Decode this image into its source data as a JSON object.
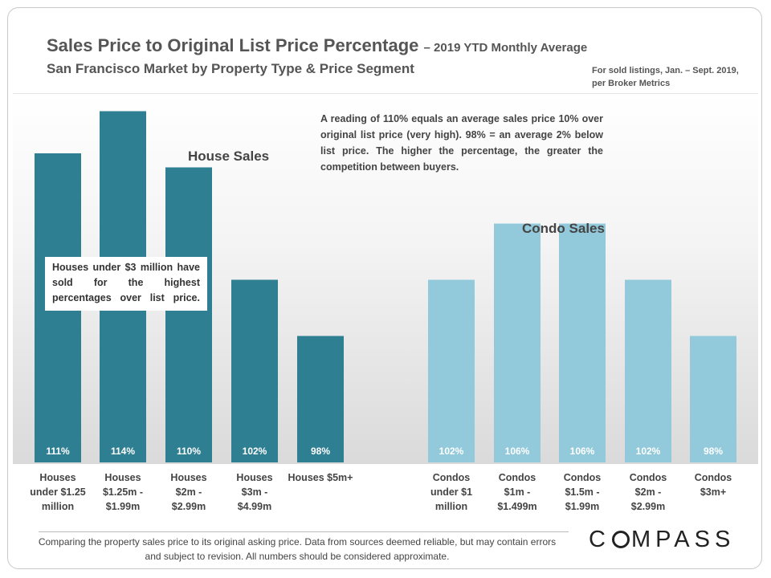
{
  "header": {
    "title": "Sales Price to Original List Price Percentage",
    "title_suffix": "– 2019 YTD Monthly Average",
    "subtitle": "San Francisco Market by Property Type & Price Segment",
    "source_note": "For sold listings, Jan. – Sept. 2019, per Broker Metrics"
  },
  "chart_data": {
    "type": "bar",
    "title": "Sales Price to Original List Price Percentage – 2019 YTD Monthly Average",
    "ylabel": "",
    "xlabel": "",
    "ylim": [
      89,
      115
    ],
    "series": [
      {
        "name": "House Sales",
        "color": "#2f7f93",
        "categories": [
          "Houses under $1.25 million",
          "Houses $1.25m - $1.99m",
          "Houses $2m - $2.99m",
          "Houses $3m - $4.99m",
          "Houses $5m+"
        ],
        "category_lines": [
          [
            "Houses",
            "under $1.25",
            "million"
          ],
          [
            "Houses",
            "$1.25m -",
            "$1.99m"
          ],
          [
            "Houses",
            "$2m -",
            "$2.99m"
          ],
          [
            "Houses",
            "$3m -",
            "$4.99m"
          ],
          [
            "Houses $5m+"
          ]
        ],
        "values": [
          111,
          114,
          110,
          102,
          98
        ],
        "labels": [
          "111%",
          "114%",
          "110%",
          "102%",
          "98%"
        ]
      },
      {
        "name": "Condo Sales",
        "color": "#92cadb",
        "categories": [
          "Condos under $1 million",
          "Condos $1m - $1.499m",
          "Condos $1.5m - $1.99m",
          "Condos $2m - $2.99m",
          "Condos $3m+"
        ],
        "category_lines": [
          [
            "Condos",
            "under $1",
            "million"
          ],
          [
            "Condos",
            "$1m -",
            "$1.499m"
          ],
          [
            "Condos",
            "$1.5m -",
            "$1.99m"
          ],
          [
            "Condos",
            "$2m -",
            "$2.99m"
          ],
          [
            "Condos",
            "$3m+"
          ]
        ],
        "values": [
          102,
          106,
          106,
          102,
          98
        ],
        "labels": [
          "102%",
          "106%",
          "106%",
          "102%",
          "98%"
        ]
      }
    ],
    "annotations": {
      "note": "A reading of 110% equals an average sales price 10% over original list price (very high). 98% = an average 2% below list price. The higher the percentage, the greater the competition between buyers.",
      "callout": "Houses under $3 million have sold for the highest percentages over list price."
    }
  },
  "footer": {
    "disclaimer": "Comparing the property sales price to its original asking price. Data from sources deemed reliable, but may contain errors and subject to revision. All numbers should be considered approximate.",
    "logo_before": "C",
    "logo_after": "MPASS"
  }
}
